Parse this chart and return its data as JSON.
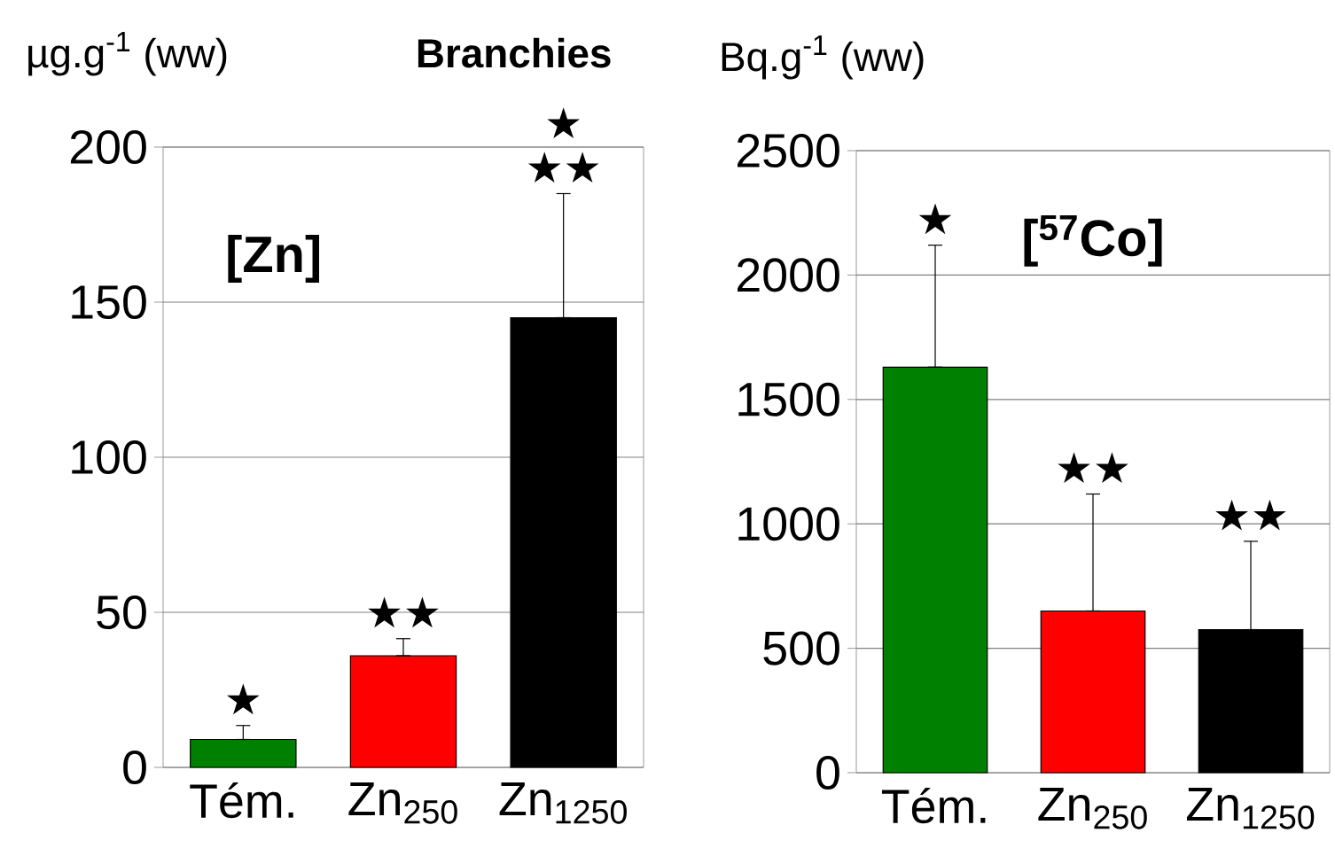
{
  "chart_data": [
    {
      "type": "bar",
      "title": "Branchies",
      "ylabel": "µg.g$^{-1}$ (ww)",
      "categories": [
        "Tém.",
        "Zn$_{250}$",
        "Zn$_{1250}$"
      ],
      "values": [
        9,
        36,
        145
      ],
      "colors": [
        "#008000",
        "#ff0000",
        "#000000"
      ],
      "errors": [
        [
          9,
          13.5
        ],
        [
          36,
          41.5
        ],
        [
          145,
          185
        ]
      ],
      "ylim": [
        0,
        200
      ],
      "yticks": [
        0,
        50,
        100,
        150,
        200
      ],
      "grid": "y",
      "annotations": [
        "[Zn]",
        {
          "text": "★",
          "x": "Tém.",
          "y": 13.5
        },
        {
          "text": "★★",
          "x": "Zn$_{250}$",
          "y": 41.5
        },
        {
          "text": "★★",
          "x": "Zn$_{1250}$",
          "y": 185
        },
        {
          "text": "★",
          "x": "Zn$_{1250}$",
          "y": 185
        }
      ]
    },
    {
      "type": "bar",
      "ylabel": "Bq.g$^{-1}$ (ww)",
      "categories": [
        "Tém.",
        "Zn$_{250}$",
        "Zn$_{1250}$"
      ],
      "values": [
        1630,
        650,
        575
      ],
      "colors": [
        "#008000",
        "#ff0000",
        "#000000"
      ],
      "errors": [
        [
          1630,
          2120
        ],
        [
          650,
          1120
        ],
        [
          575,
          930
        ]
      ],
      "ylim": [
        0,
        2500
      ],
      "yticks": [
        0,
        500,
        1000,
        1500,
        2000,
        2500
      ],
      "grid": "y",
      "annotations": [
        "[$^{57}$Co]",
        {
          "text": "★",
          "x": "Tém.",
          "y": 2120
        },
        {
          "text": "★★",
          "x": "Zn$_{250}$",
          "y": 1120
        },
        {
          "text": "★★",
          "x": "Zn$_{1250}$",
          "y": 930
        }
      ]
    }
  ]
}
